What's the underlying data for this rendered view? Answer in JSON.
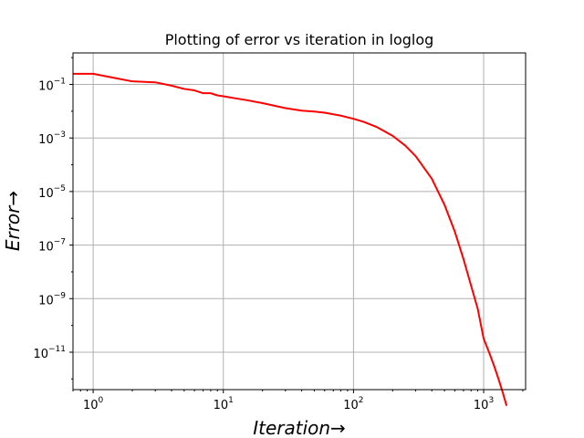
{
  "chart_data": {
    "type": "line",
    "title": "Plotting of error vs iteration in loglog",
    "xlabel": "Iteration→",
    "ylabel": "Error→",
    "xscale": "log",
    "yscale": "log",
    "xlim": [
      0.7,
      2100
    ],
    "ylim": [
      4e-13,
      1.5
    ],
    "grid": true,
    "x_ticks": [
      {
        "value": 1,
        "base": "10",
        "exp": "0"
      },
      {
        "value": 10,
        "base": "10",
        "exp": "1"
      },
      {
        "value": 100,
        "base": "10",
        "exp": "2"
      },
      {
        "value": 1000,
        "base": "10",
        "exp": "3"
      }
    ],
    "y_ticks": [
      {
        "value": 1e-11,
        "base": "10",
        "exp": "−11"
      },
      {
        "value": 1e-09,
        "base": "10",
        "exp": "−9"
      },
      {
        "value": 1e-07,
        "base": "10",
        "exp": "−7"
      },
      {
        "value": 1e-05,
        "base": "10",
        "exp": "−5"
      },
      {
        "value": 0.001,
        "base": "10",
        "exp": "−3"
      },
      {
        "value": 0.1,
        "base": "10",
        "exp": "−1"
      }
    ],
    "series": [
      {
        "color": "#ff0000",
        "x": [
          0.7,
          1,
          1.5,
          2,
          3,
          4,
          5,
          6,
          7,
          8,
          9,
          10,
          12,
          15,
          20,
          30,
          40,
          50,
          60,
          80,
          100,
          120,
          150,
          200,
          250,
          300,
          400,
          500,
          600,
          700,
          800,
          900,
          1000,
          1100,
          1200,
          1300,
          1400,
          1500
        ],
        "y": [
          0.25,
          0.25,
          0.17,
          0.13,
          0.12,
          0.09,
          0.068,
          0.06,
          0.047,
          0.047,
          0.039,
          0.036,
          0.031,
          0.026,
          0.02,
          0.013,
          0.0105,
          0.0097,
          0.0088,
          0.0068,
          0.0052,
          0.004,
          0.0026,
          0.0012,
          0.00052,
          0.00021,
          3e-05,
          3.2e-06,
          3.2e-07,
          3e-08,
          3.1e-09,
          4.2e-10,
          3.2e-11,
          1e-11,
          3.2e-12,
          1e-12,
          3.2e-13,
          1e-13
        ]
      }
    ]
  }
}
